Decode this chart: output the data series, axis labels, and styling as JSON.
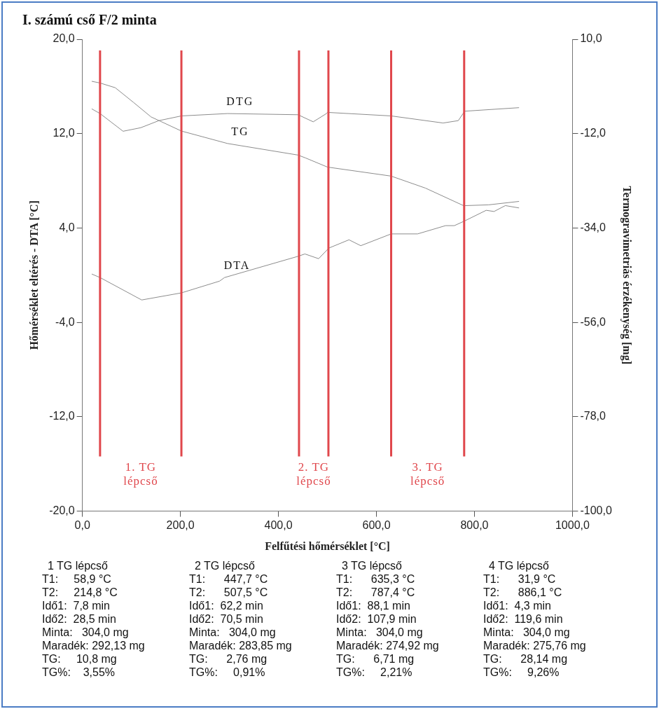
{
  "chart_data": {
    "type": "line",
    "title": "I. számú cső F/2 minta",
    "xlabel": "Felfűtési hőmérséklet [°C]",
    "ylabel": "Hőmérséklet eltérés - DTA [°C]",
    "y2label": "Termogravimetriás érzékenység [mg]",
    "xlim": [
      0,
      1000
    ],
    "xticks": [
      {
        "value": 0,
        "label": "0,0"
      },
      {
        "value": 200,
        "label": "200,0"
      },
      {
        "value": 400,
        "label": "400,0"
      },
      {
        "value": 600,
        "label": "600,0"
      },
      {
        "value": 800,
        "label": "800,0"
      },
      {
        "value": 1000,
        "label": "1000,0"
      }
    ],
    "ylim": [
      -20,
      20
    ],
    "yticks": [
      {
        "value": -20,
        "label": "-20,0"
      },
      {
        "value": -12,
        "label": "-12,0"
      },
      {
        "value": -4,
        "label": "-4,0"
      },
      {
        "value": 4,
        "label": "4,0"
      },
      {
        "value": 12,
        "label": "12,0"
      },
      {
        "value": 20,
        "label": "20,0"
      }
    ],
    "y2lim": [
      -100,
      10
    ],
    "y2ticks": [
      {
        "value": -100,
        "label": "-100,0"
      },
      {
        "value": -78,
        "label": "-78,0"
      },
      {
        "value": -56,
        "label": "-56,0"
      },
      {
        "value": -34,
        "label": "-34,0"
      },
      {
        "value": -12,
        "label": "-12,0"
      },
      {
        "value": 10,
        "label": "10,0"
      }
    ],
    "grid": false,
    "legend": false,
    "marker": "none",
    "line_style": "solid",
    "series": [
      {
        "name": "DTG",
        "color": "#8c8c8c",
        "x": [
          19,
          36,
          83,
          119,
          156,
          202,
          296,
          440,
          471,
          498,
          500,
          630,
          736,
          767,
          780,
          891
        ],
        "values": [
          14.1,
          13.7,
          12.2,
          12.5,
          13.1,
          13.5,
          13.7,
          13.6,
          13.0,
          13.7,
          13.8,
          13.5,
          12.9,
          13.1,
          13.9,
          14.2
        ]
      },
      {
        "name": "TG",
        "color": "#8c8c8c",
        "axis": "y2",
        "x": [
          19,
          36,
          67,
          104,
          140,
          202,
          296,
          440,
          456,
          500,
          630,
          700,
          778,
          829,
          891
        ],
        "values": [
          0.2,
          -0.2,
          -1.3,
          -4.7,
          -8.1,
          -11.4,
          -14.3,
          -17.0,
          -17.7,
          -19.8,
          -21.9,
          -24.7,
          -28.8,
          -28.6,
          -27.8
        ]
      },
      {
        "name": "DTA",
        "color": "#8c8c8c",
        "x": [
          19,
          36,
          121,
          202,
          280,
          290,
          440,
          454,
          482,
          503,
          544,
          568,
          630,
          684,
          741,
          759,
          780,
          824,
          840,
          863,
          891
        ],
        "values": [
          0.1,
          -0.2,
          -2.1,
          -1.5,
          -0.5,
          -0.2,
          1.6,
          1.8,
          1.4,
          2.3,
          3.0,
          2.5,
          3.5,
          3.5,
          4.2,
          4.2,
          4.6,
          5.5,
          5.4,
          5.9,
          5.7
        ]
      }
    ],
    "ref_lines": [
      {
        "axis": "x",
        "value": 36,
        "color": "#e0474c"
      },
      {
        "axis": "x",
        "value": 202,
        "color": "#e0474c"
      },
      {
        "axis": "x",
        "value": 442,
        "color": "#e0474c"
      },
      {
        "axis": "x",
        "value": 502,
        "color": "#e0474c"
      },
      {
        "axis": "x",
        "value": 630,
        "color": "#e0474c"
      },
      {
        "axis": "x",
        "value": 779,
        "color": "#e0474c"
      }
    ],
    "annotations": [
      "1. TG lépcső",
      "2. TG lépcső",
      "3. TG lépcső",
      "1 TG lépcső\nT1:     58,9 °C\nT2:     214,8 °C\nIdő1:  7,8 min\nIdő2:  28,5 min\nMinta:   304,0 mg\nMaradék: 292,13 mg\nTG:     10,8 mg\nTG%:    3,55%",
      "2 TG lépcső\nT1:      447,7 °C\nT2:      507,5 °C\nIdő1:  62,2 min\nIdő2:  70,5 min\nMinta:   304,0 mg\nMaradék: 283,85 mg\nTG:      2,76 mg\nTG%:     0,91%",
      "3 TG lépcső\nT1:      635,3 °C\nT2:      787,4 °C\nIdő1:  88,1 min\nIdő2:  107,9 min\nMinta:   304,0 mg\nMaradék: 274,92 mg\nTG:      6,71 mg\nTG%:     2,21%",
      "4 TG lépcső\nT1:      31,9 °C\nT2:      886,1 °C\nIdő1:  4,3 min\nIdő2:  119,6 min\nMinta:   304,0 mg\nMaradék: 275,76 mg\nTG:      28,14 mg\nTG%:     9,26%"
    ]
  }
}
